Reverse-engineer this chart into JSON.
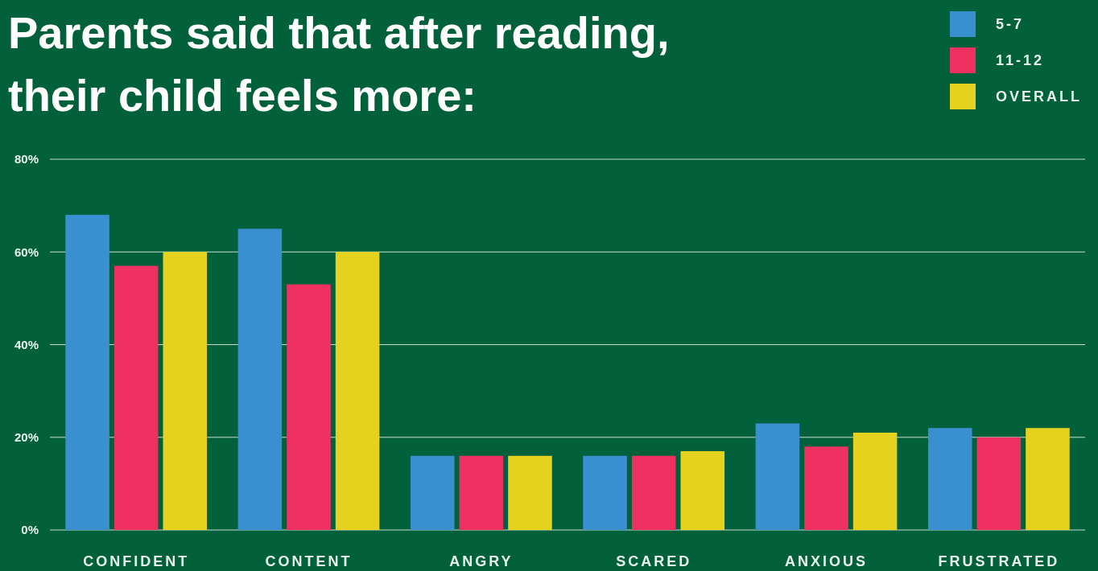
{
  "chart_data": {
    "type": "bar",
    "title": "Parents said that after reading, their child feels more:",
    "categories": [
      "CONFIDENT",
      "CONTENT",
      "ANGRY",
      "SCARED",
      "ANXIOUS",
      "FRUSTRATED"
    ],
    "series": [
      {
        "name": "5-7",
        "color": "#3a8fd0",
        "values": [
          68,
          65,
          16,
          16,
          23,
          22
        ]
      },
      {
        "name": "11-12",
        "color": "#ee3160",
        "values": [
          57,
          53,
          16,
          16,
          18,
          20
        ]
      },
      {
        "name": "OVERALL",
        "color": "#e5d21e",
        "values": [
          60,
          60,
          16,
          17,
          21,
          22
        ]
      }
    ],
    "ylim": [
      0,
      80
    ],
    "yticks": [
      {
        "value": 0,
        "label": "0%"
      },
      {
        "value": 20,
        "label": "20%"
      },
      {
        "value": 40,
        "label": "40%"
      },
      {
        "value": 60,
        "label": "60%"
      },
      {
        "value": 80,
        "label": "80%"
      }
    ],
    "grid": "y",
    "legend": "top right"
  }
}
